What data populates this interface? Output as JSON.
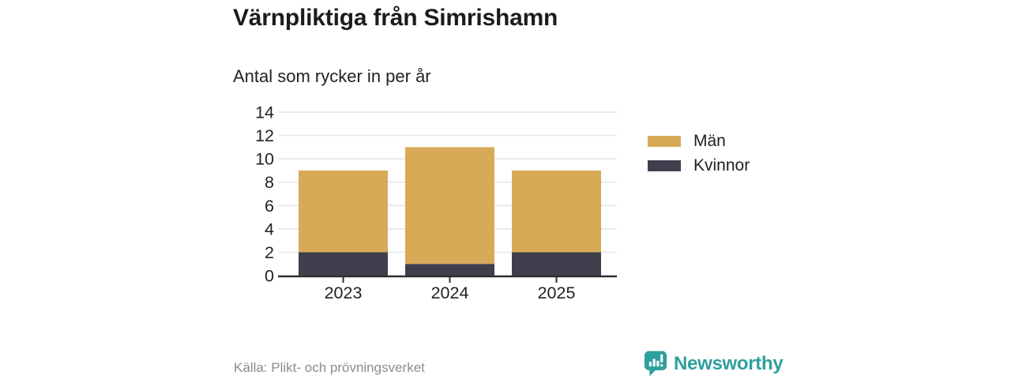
{
  "chart_data": {
    "type": "bar",
    "stacked": true,
    "title": "Värnpliktiga från Simrishamn",
    "subtitle": "Antal som rycker in per år",
    "categories": [
      "2023",
      "2024",
      "2025"
    ],
    "series": [
      {
        "name": "Män",
        "color": "#d8aa58",
        "values": [
          7,
          10,
          7
        ]
      },
      {
        "name": "Kvinnor",
        "color": "#413f4e",
        "values": [
          2,
          1,
          2
        ]
      }
    ],
    "stack_bottom_to_top": [
      "Kvinnor",
      "Män"
    ],
    "totals": [
      9,
      11,
      9
    ],
    "xlabel": "",
    "ylabel": "",
    "ylim": [
      0,
      14
    ],
    "yticks": [
      0,
      2,
      4,
      6,
      8,
      10,
      12,
      14
    ],
    "grid": true,
    "legend_position": "right"
  },
  "footer": {
    "source": "Källa: Plikt- och prövningsverket",
    "brand": "Newsworthy"
  },
  "colors": {
    "accent_gold": "#d8aa58",
    "accent_dark": "#413f4e",
    "brand_teal": "#2f9e9e",
    "grid": "#e7e7e7",
    "axis": "#2e2e2e",
    "text": "#1f1f1f",
    "muted": "#8c8c8c"
  }
}
